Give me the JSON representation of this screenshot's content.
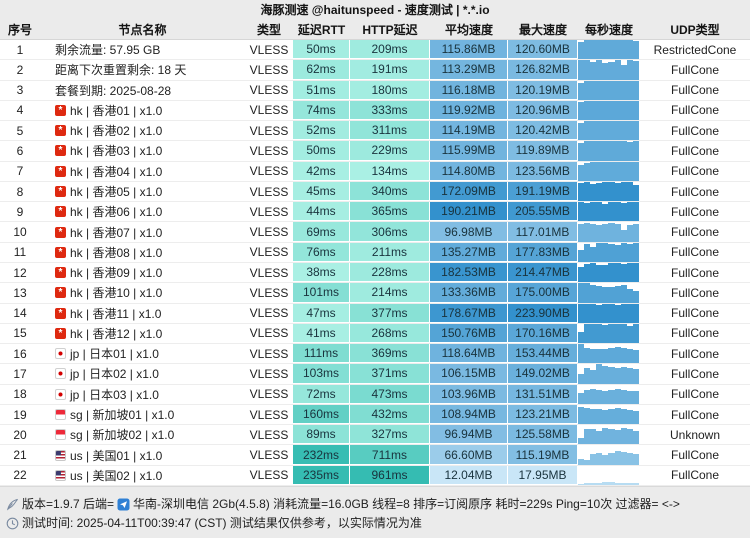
{
  "header": {
    "title": "海豚测速 @haitunspeed - 速度测试 | *.*.io"
  },
  "columns": [
    "序号",
    "节点名称",
    "类型",
    "延迟RTT",
    "HTTP延迟",
    "平均速度",
    "最大速度",
    "每秒速度",
    "UDP类型"
  ],
  "colors": {
    "latency_light": "#aaf0e4",
    "latency_dark": "#35bcb2",
    "speed_light": "#c9e6f7",
    "speed_dark": "#3391cd",
    "header_bg": "#ebebeb"
  },
  "rows": [
    {
      "idx": "1",
      "flag": null,
      "name": "剩余流量:  57.95 GB",
      "type": "VLESS",
      "rtt": "50ms",
      "http": "209ms",
      "avg": "115.86MB",
      "max": "120.60MB",
      "udp": "RestrictedCone",
      "bars": [
        0.9,
        1,
        1,
        1,
        1,
        1,
        1,
        1,
        1,
        0.97
      ]
    },
    {
      "idx": "2",
      "flag": null,
      "name": "距离下次重置剩余:  18 天",
      "type": "VLESS",
      "rtt": "62ms",
      "http": "191ms",
      "avg": "113.29MB",
      "max": "126.82MB",
      "udp": "FullCone",
      "bars": [
        1,
        1,
        0.9,
        1,
        0.85,
        0.92,
        1,
        0.78,
        1,
        0.95
      ]
    },
    {
      "idx": "3",
      "flag": null,
      "name": "套餐到期:  2025-08-28",
      "type": "VLESS",
      "rtt": "51ms",
      "http": "180ms",
      "avg": "116.18MB",
      "max": "120.19MB",
      "udp": "FullCone",
      "bars": [
        0.88,
        1,
        1,
        1,
        1,
        1,
        1,
        1,
        1,
        1
      ]
    },
    {
      "idx": "4",
      "flag": "hk",
      "name": "hk | 香港01 | x1.0",
      "type": "VLESS",
      "rtt": "74ms",
      "http": "333ms",
      "avg": "119.92MB",
      "max": "120.96MB",
      "udp": "FullCone",
      "bars": [
        0.95,
        1,
        1,
        1,
        1,
        1,
        1,
        1,
        1,
        1
      ]
    },
    {
      "idx": "5",
      "flag": "hk",
      "name": "hk | 香港02 | x1.0",
      "type": "VLESS",
      "rtt": "52ms",
      "http": "311ms",
      "avg": "114.19MB",
      "max": "120.42MB",
      "udp": "FullCone",
      "bars": [
        0.9,
        1,
        1,
        1,
        1,
        1,
        1,
        1,
        1,
        1
      ]
    },
    {
      "idx": "6",
      "flag": "hk",
      "name": "hk | 香港03 | x1.0",
      "type": "VLESS",
      "rtt": "50ms",
      "http": "229ms",
      "avg": "115.99MB",
      "max": "119.89MB",
      "udp": "FullCone",
      "bars": [
        0.92,
        1,
        1,
        1,
        1,
        1,
        1,
        1,
        0.97,
        1
      ]
    },
    {
      "idx": "7",
      "flag": "hk",
      "name": "hk | 香港04 | x1.0",
      "type": "VLESS",
      "rtt": "42ms",
      "http": "134ms",
      "avg": "114.80MB",
      "max": "123.56MB",
      "udp": "FullCone",
      "bars": [
        0.85,
        0.95,
        1,
        1,
        1,
        1,
        1,
        1,
        1,
        1
      ]
    },
    {
      "idx": "8",
      "flag": "hk",
      "name": "hk | 香港05 | x1.0",
      "type": "VLESS",
      "rtt": "45ms",
      "http": "340ms",
      "avg": "172.09MB",
      "max": "191.19MB",
      "udp": "FullCone",
      "bars": [
        0.95,
        1,
        0.9,
        0.95,
        1,
        1,
        0.92,
        1,
        1,
        0.85
      ]
    },
    {
      "idx": "9",
      "flag": "hk",
      "name": "hk | 香港06 | x1.0",
      "type": "VLESS",
      "rtt": "44ms",
      "http": "365ms",
      "avg": "190.21MB",
      "max": "205.55MB",
      "udp": "FullCone",
      "bars": [
        1,
        0.95,
        1,
        1,
        0.9,
        1,
        1,
        0.95,
        1,
        1
      ]
    },
    {
      "idx": "10",
      "flag": "hk",
      "name": "hk | 香港07 | x1.0",
      "type": "VLESS",
      "rtt": "69ms",
      "http": "306ms",
      "avg": "96.98MB",
      "max": "117.01MB",
      "udp": "FullCone",
      "bars": [
        0.9,
        0.95,
        0.9,
        0.85,
        0.9,
        0.95,
        0.9,
        0.6,
        0.85,
        0.9
      ]
    },
    {
      "idx": "11",
      "flag": "hk",
      "name": "hk | 香港08 | x1.0",
      "type": "VLESS",
      "rtt": "76ms",
      "http": "211ms",
      "avg": "135.27MB",
      "max": "177.83MB",
      "udp": "FullCone",
      "bars": [
        0.6,
        0.95,
        0.8,
        1,
        1,
        0.95,
        0.9,
        1,
        0.95,
        1
      ]
    },
    {
      "idx": "12",
      "flag": "hk",
      "name": "hk | 香港09 | x1.0",
      "type": "VLESS",
      "rtt": "38ms",
      "http": "228ms",
      "avg": "182.53MB",
      "max": "214.47MB",
      "udp": "FullCone",
      "bars": [
        0.8,
        0.95,
        1,
        0.92,
        0.88,
        1,
        1,
        0.95,
        1,
        1
      ]
    },
    {
      "idx": "13",
      "flag": "hk",
      "name": "hk | 香港10 | x1.0",
      "type": "VLESS",
      "rtt": "101ms",
      "http": "214ms",
      "avg": "133.36MB",
      "max": "175.00MB",
      "udp": "FullCone",
      "bars": [
        1,
        1,
        0.9,
        0.85,
        0.82,
        0.8,
        0.85,
        0.9,
        0.7,
        0.6
      ]
    },
    {
      "idx": "14",
      "flag": "hk",
      "name": "hk | 香港11 | x1.0",
      "type": "VLESS",
      "rtt": "47ms",
      "http": "377ms",
      "avg": "178.67MB",
      "max": "223.90MB",
      "udp": "FullCone",
      "bars": [
        1,
        1,
        1,
        0.95,
        1,
        1,
        0.9,
        1,
        1,
        1
      ]
    },
    {
      "idx": "15",
      "flag": "hk",
      "name": "hk | 香港12 | x1.0",
      "type": "VLESS",
      "rtt": "41ms",
      "http": "268ms",
      "avg": "150.76MB",
      "max": "170.16MB",
      "udp": "FullCone",
      "bars": [
        0.6,
        1,
        1,
        1,
        0.95,
        1,
        1,
        1,
        0.9,
        1
      ]
    },
    {
      "idx": "16",
      "flag": "jp",
      "name": "jp | 日本01 | x1.0",
      "type": "VLESS",
      "rtt": "111ms",
      "http": "369ms",
      "avg": "118.64MB",
      "max": "153.44MB",
      "udp": "FullCone",
      "bars": [
        1,
        0.8,
        0.75,
        0.72,
        0.75,
        0.8,
        0.85,
        0.8,
        0.75,
        0.7
      ]
    },
    {
      "idx": "17",
      "flag": "jp",
      "name": "jp | 日本02 | x1.0",
      "type": "VLESS",
      "rtt": "103ms",
      "http": "371ms",
      "avg": "106.15MB",
      "max": "149.02MB",
      "udp": "FullCone",
      "bars": [
        0.5,
        0.8,
        0.7,
        1,
        0.9,
        0.85,
        0.8,
        0.85,
        0.8,
        0.75
      ]
    },
    {
      "idx": "18",
      "flag": "jp",
      "name": "jp | 日本03 | x1.0",
      "type": "VLESS",
      "rtt": "72ms",
      "http": "473ms",
      "avg": "103.96MB",
      "max": "131.51MB",
      "udp": "FullCone",
      "bars": [
        0.55,
        0.7,
        0.78,
        0.72,
        0.65,
        0.7,
        0.75,
        0.7,
        0.68,
        0.65
      ]
    },
    {
      "idx": "19",
      "flag": "sg",
      "name": "sg | 新加坡01 | x1.0",
      "type": "VLESS",
      "rtt": "160ms",
      "http": "432ms",
      "avg": "108.94MB",
      "max": "123.21MB",
      "udp": "FullCone",
      "bars": [
        0.9,
        0.85,
        0.8,
        0.78,
        0.75,
        0.8,
        0.85,
        0.8,
        0.75,
        0.7
      ]
    },
    {
      "idx": "20",
      "flag": "sg",
      "name": "sg | 新加坡02 | x1.0",
      "type": "VLESS",
      "rtt": "89ms",
      "http": "327ms",
      "avg": "96.94MB",
      "max": "125.58MB",
      "udp": "Unknown",
      "bars": [
        0.35,
        0.78,
        0.82,
        0.72,
        0.88,
        0.8,
        0.75,
        0.85,
        0.8,
        0.7
      ]
    },
    {
      "idx": "21",
      "flag": "us",
      "name": "us | 美国01 | x1.0",
      "type": "VLESS",
      "rtt": "232ms",
      "http": "711ms",
      "avg": "66.60MB",
      "max": "115.19MB",
      "udp": "FullCone",
      "bars": [
        0.3,
        0.25,
        0.55,
        0.6,
        0.5,
        0.62,
        0.7,
        0.65,
        0.6,
        0.55
      ]
    },
    {
      "idx": "22",
      "flag": "us",
      "name": "us | 美国02 | x1.0",
      "type": "VLESS",
      "rtt": "235ms",
      "http": "961ms",
      "avg": "12.04MB",
      "max": "17.95MB",
      "udp": "FullCone",
      "bars": [
        0.05,
        0.08,
        0.1,
        0.12,
        0.15,
        0.14,
        0.12,
        0.1,
        0.12,
        0.1
      ]
    }
  ],
  "footer": {
    "line1_prefix": "版本=1.9.7  后端=",
    "line1_suffix": "华南-深圳电信 2Gb(4.5.8) 消耗流量=16.0GB  线程=8  排序=订阅原序  耗时=229s  Ping=10次  过滤器= <->",
    "line2": "测试时间: 2025-04-11T00:39:47 (CST)  测试结果仅供参考，以实际情况为准"
  }
}
